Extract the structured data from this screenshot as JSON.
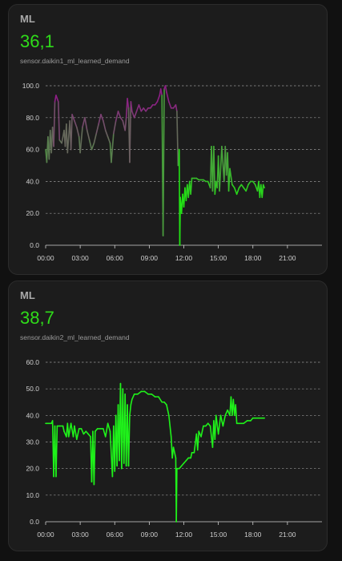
{
  "cards": [
    {
      "title": "ML",
      "value": "36,1",
      "entity": "sensor.daikin1_ml_learned_demand",
      "colors": {
        "value": "#2fdc1a",
        "low": "#22e314",
        "high": "#8e1f86"
      },
      "chart_data": {
        "type": "line",
        "title": "",
        "xlabel": "",
        "ylabel": "",
        "ylim": [
          0,
          100
        ],
        "xlim": [
          0,
          24
        ],
        "yticks": [
          "0.0",
          "20.0",
          "40.0",
          "60.0",
          "80.0",
          "100.0"
        ],
        "xticks": [
          "00:00",
          "03:00",
          "06:00",
          "09:00",
          "12:00",
          "15:00",
          "18:00",
          "21:00"
        ],
        "grid": true,
        "series": [
          {
            "values": [
              [
                0.0,
                60
              ],
              [
                0.1,
                52
              ],
              [
                0.2,
                68
              ],
              [
                0.3,
                54
              ],
              [
                0.4,
                72
              ],
              [
                0.5,
                58
              ],
              [
                0.6,
                74
              ],
              [
                0.7,
                62
              ],
              [
                0.8,
                90
              ],
              [
                0.9,
                94
              ],
              [
                1.0,
                92
              ],
              [
                1.1,
                90
              ],
              [
                1.2,
                66
              ],
              [
                1.4,
                64
              ],
              [
                1.6,
                72
              ],
              [
                1.7,
                62
              ],
              [
                1.8,
                76
              ],
              [
                1.9,
                58
              ],
              [
                2.1,
                78
              ],
              [
                2.2,
                60
              ],
              [
                2.3,
                82
              ],
              [
                2.5,
                78
              ],
              [
                2.7,
                74
              ],
              [
                2.9,
                68
              ],
              [
                3.0,
                58
              ],
              [
                3.2,
                74
              ],
              [
                3.4,
                80
              ],
              [
                3.6,
                72
              ],
              [
                3.8,
                66
              ],
              [
                4.0,
                60
              ],
              [
                4.2,
                64
              ],
              [
                4.4,
                70
              ],
              [
                4.6,
                76
              ],
              [
                4.8,
                82
              ],
              [
                5.0,
                78
              ],
              [
                5.2,
                72
              ],
              [
                5.4,
                68
              ],
              [
                5.6,
                64
              ],
              [
                5.7,
                52
              ],
              [
                5.9,
                70
              ],
              [
                6.1,
                78
              ],
              [
                6.3,
                84
              ],
              [
                6.5,
                80
              ],
              [
                6.7,
                78
              ],
              [
                6.9,
                72
              ],
              [
                7.0,
                80
              ],
              [
                7.1,
                92
              ],
              [
                7.2,
                86
              ],
              [
                7.3,
                52
              ],
              [
                7.4,
                90
              ],
              [
                7.5,
                84
              ],
              [
                7.7,
                80
              ],
              [
                7.9,
                84
              ],
              [
                8.1,
                88
              ],
              [
                8.3,
                84
              ],
              [
                8.5,
                86
              ],
              [
                8.7,
                84
              ],
              [
                8.9,
                86
              ],
              [
                9.1,
                86
              ],
              [
                9.3,
                88
              ],
              [
                9.5,
                88
              ],
              [
                9.7,
                90
              ],
              [
                9.9,
                94
              ],
              [
                10.0,
                98
              ],
              [
                10.1,
                94
              ],
              [
                10.2,
                6
              ],
              [
                10.3,
                98
              ],
              [
                10.4,
                100
              ],
              [
                10.5,
                96
              ],
              [
                10.7,
                90
              ],
              [
                10.9,
                86
              ],
              [
                11.1,
                86
              ],
              [
                11.3,
                88
              ],
              [
                11.4,
                84
              ],
              [
                11.5,
                50
              ],
              [
                11.6,
                60
              ],
              [
                11.65,
                0
              ],
              [
                11.7,
                30
              ],
              [
                11.8,
                20
              ],
              [
                11.9,
                32
              ],
              [
                12.0,
                24
              ],
              [
                12.1,
                36
              ],
              [
                12.2,
                28
              ],
              [
                12.3,
                38
              ],
              [
                12.4,
                30
              ],
              [
                12.5,
                40
              ],
              [
                12.6,
                32
              ],
              [
                12.7,
                42
              ],
              [
                12.9,
                42
              ],
              [
                13.1,
                42
              ],
              [
                13.3,
                41
              ],
              [
                13.5,
                41
              ],
              [
                13.7,
                41
              ],
              [
                13.9,
                40
              ],
              [
                14.1,
                40
              ],
              [
                14.3,
                36
              ],
              [
                14.4,
                62
              ],
              [
                14.5,
                34
              ],
              [
                14.6,
                62
              ],
              [
                14.7,
                32
              ],
              [
                14.8,
                40
              ],
              [
                14.9,
                36
              ],
              [
                15.0,
                56
              ],
              [
                15.1,
                34
              ],
              [
                15.3,
                62
              ],
              [
                15.5,
                40
              ],
              [
                15.6,
                62
              ],
              [
                15.7,
                44
              ],
              [
                15.8,
                58
              ],
              [
                15.9,
                34
              ],
              [
                16.0,
                48
              ],
              [
                16.2,
                38
              ],
              [
                16.4,
                36
              ],
              [
                16.6,
                32
              ],
              [
                16.8,
                36
              ],
              [
                17.0,
                38
              ],
              [
                17.2,
                36
              ],
              [
                17.4,
                34
              ],
              [
                17.6,
                38
              ],
              [
                17.8,
                40
              ],
              [
                18.0,
                40
              ],
              [
                18.2,
                38
              ],
              [
                18.4,
                34
              ],
              [
                18.5,
                40
              ],
              [
                18.6,
                30
              ],
              [
                18.7,
                38
              ],
              [
                18.8,
                30
              ],
              [
                18.9,
                38
              ],
              [
                19.0,
                36
              ]
            ]
          }
        ]
      }
    },
    {
      "title": "ML",
      "value": "38,7",
      "entity": "sensor.daikin2_ml_learned_demand",
      "colors": {
        "value": "#2fdc1a",
        "line": "#1ff21a"
      },
      "chart_data": {
        "type": "line",
        "title": "",
        "xlabel": "",
        "ylabel": "",
        "ylim": [
          0,
          60
        ],
        "xlim": [
          0,
          24
        ],
        "yticks": [
          "0.0",
          "10.0",
          "20.0",
          "30.0",
          "40.0",
          "50.0",
          "60.0"
        ],
        "xticks": [
          "00:00",
          "03:00",
          "06:00",
          "09:00",
          "12:00",
          "15:00",
          "18:00",
          "21:00"
        ],
        "grid": true,
        "series": [
          {
            "values": [
              [
                0.0,
                37
              ],
              [
                0.5,
                37
              ],
              [
                0.6,
                38
              ],
              [
                0.7,
                17
              ],
              [
                0.8,
                36
              ],
              [
                0.9,
                17
              ],
              [
                1.0,
                36
              ],
              [
                1.2,
                36
              ],
              [
                1.5,
                36
              ],
              [
                1.6,
                34
              ],
              [
                1.8,
                32
              ],
              [
                1.9,
                37
              ],
              [
                2.0,
                32
              ],
              [
                2.2,
                37
              ],
              [
                2.4,
                32
              ],
              [
                2.5,
                36
              ],
              [
                2.7,
                31
              ],
              [
                2.9,
                35
              ],
              [
                3.1,
                35
              ],
              [
                3.3,
                33
              ],
              [
                3.5,
                34
              ],
              [
                3.7,
                33
              ],
              [
                3.9,
                32
              ],
              [
                4.0,
                15
              ],
              [
                4.1,
                34
              ],
              [
                4.2,
                14
              ],
              [
                4.3,
                34
              ],
              [
                4.5,
                35
              ],
              [
                4.8,
                35
              ],
              [
                5.0,
                35
              ],
              [
                5.2,
                32
              ],
              [
                5.4,
                37
              ],
              [
                5.6,
                34
              ],
              [
                5.8,
                17
              ],
              [
                5.9,
                36
              ],
              [
                6.0,
                19
              ],
              [
                6.1,
                40
              ],
              [
                6.2,
                21
              ],
              [
                6.3,
                44
              ],
              [
                6.4,
                23
              ],
              [
                6.5,
                52
              ],
              [
                6.6,
                20
              ],
              [
                6.7,
                50
              ],
              [
                6.8,
                22
              ],
              [
                6.9,
                48
              ],
              [
                7.0,
                21
              ],
              [
                7.1,
                44
              ],
              [
                7.2,
                21
              ],
              [
                7.3,
                40
              ],
              [
                7.4,
                44
              ],
              [
                7.5,
                46
              ],
              [
                7.7,
                48
              ],
              [
                8.0,
                48
              ],
              [
                8.3,
                49
              ],
              [
                8.6,
                49
              ],
              [
                8.9,
                48
              ],
              [
                9.2,
                48
              ],
              [
                9.5,
                47
              ],
              [
                9.8,
                47
              ],
              [
                10.1,
                45
              ],
              [
                10.3,
                45
              ],
              [
                10.5,
                44
              ],
              [
                10.7,
                40
              ],
              [
                10.9,
                32
              ],
              [
                11.0,
                24
              ],
              [
                11.1,
                28
              ],
              [
                11.3,
                24
              ],
              [
                11.35,
                0
              ],
              [
                11.4,
                20
              ],
              [
                11.6,
                20
              ],
              [
                11.8,
                21
              ],
              [
                12.0,
                22
              ],
              [
                12.2,
                23
              ],
              [
                12.4,
                24
              ],
              [
                12.6,
                24
              ],
              [
                12.7,
                26
              ],
              [
                12.9,
                26
              ],
              [
                13.1,
                33
              ],
              [
                13.2,
                27
              ],
              [
                13.3,
                34
              ],
              [
                13.5,
                32
              ],
              [
                13.7,
                36
              ],
              [
                13.9,
                36
              ],
              [
                14.1,
                37
              ],
              [
                14.3,
                36
              ],
              [
                14.5,
                28
              ],
              [
                14.6,
                38
              ],
              [
                14.7,
                31
              ],
              [
                14.8,
                40
              ],
              [
                15.0,
                33
              ],
              [
                15.2,
                40
              ],
              [
                15.4,
                36
              ],
              [
                15.6,
                40
              ],
              [
                15.8,
                42
              ],
              [
                16.0,
                40
              ],
              [
                16.1,
                47
              ],
              [
                16.2,
                40
              ],
              [
                16.3,
                46
              ],
              [
                16.4,
                40
              ],
              [
                16.5,
                44
              ],
              [
                16.6,
                37
              ],
              [
                16.8,
                37
              ],
              [
                17.0,
                37
              ],
              [
                17.2,
                37
              ],
              [
                17.5,
                38
              ],
              [
                17.8,
                38
              ],
              [
                18.0,
                39
              ],
              [
                18.2,
                39
              ],
              [
                18.5,
                39
              ],
              [
                18.8,
                39
              ],
              [
                19.0,
                39
              ]
            ]
          }
        ]
      }
    }
  ]
}
